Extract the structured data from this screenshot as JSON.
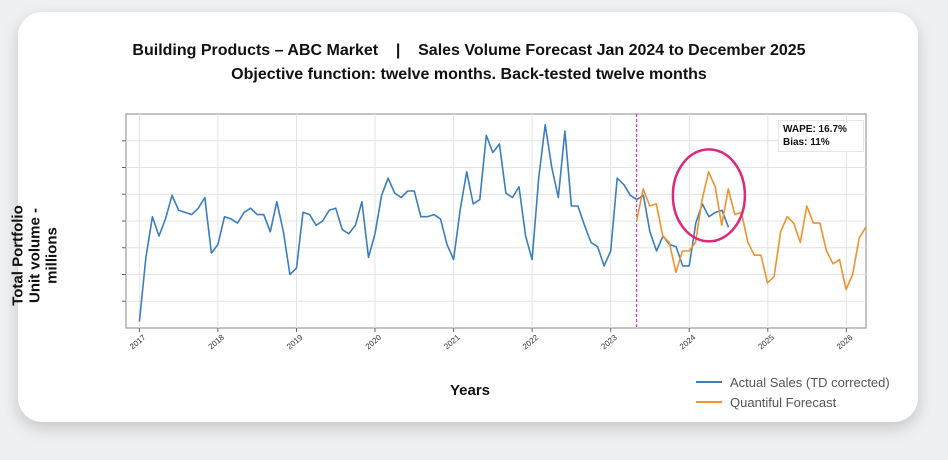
{
  "title_line1": "Building Products – ABC Market    |    Sales Volume Forecast Jan 2024 to December 2025",
  "title_line2": "Objective function: twelve months. Back-tested twelve months",
  "ylabel_line1": "Total Portfolio",
  "ylabel_line2": "Unit volume - millions",
  "xlabel": "Years",
  "metrics": {
    "wape": "WAPE: 16.7%",
    "bias": "Bias: 11%"
  },
  "legend": [
    {
      "label": "Actual Sales (TD corrected)",
      "color": "#3a7ebf"
    },
    {
      "label": "Quantiful Forecast",
      "color": "#f0922e"
    }
  ],
  "colors": {
    "actual": "#3a7ebf",
    "forecast": "#f0922e",
    "divider": "#d020d0",
    "highlight": "#e0287a"
  },
  "chart_data": {
    "type": "line",
    "title": "Building Products – ABC Market | Sales Volume Forecast Jan 2024 to December 2025",
    "xlabel": "Years",
    "ylabel": "Total Portfolio Unit volume - millions",
    "xlim": [
      2016.83,
      2026.25
    ],
    "ylim": [
      0,
      100
    ],
    "x_ticks": [
      "2017",
      "2018",
      "2019",
      "2020",
      "2021",
      "2022",
      "2023",
      "2024",
      "2025",
      "2026"
    ],
    "y_tick_labels_visible": false,
    "grid": true,
    "forecast_start": 2023.33,
    "annotation": "highlight ellipse around 2024 forecast peak",
    "series": [
      {
        "name": "Actual Sales (TD corrected)",
        "x_start": 2017.0,
        "x_step": 0.08333,
        "values": [
          3,
          33,
          52,
          43,
          51,
          62,
          55,
          54,
          53,
          56,
          61,
          35,
          39,
          52,
          51,
          49,
          54,
          56,
          53,
          53,
          45,
          59,
          45,
          25,
          28,
          54,
          53,
          48,
          50,
          55,
          56,
          46,
          44,
          48,
          59,
          33,
          44,
          62,
          70,
          63,
          61,
          64,
          64,
          52,
          52,
          53,
          51,
          39,
          32,
          55,
          73,
          58,
          60,
          90,
          82,
          86,
          63,
          61,
          66,
          43,
          32,
          70,
          95,
          75,
          61,
          92,
          57,
          57,
          48,
          40,
          38,
          29,
          36,
          70,
          67,
          62,
          60,
          62,
          45,
          36,
          43,
          39,
          38,
          29,
          29,
          49,
          58,
          52,
          54,
          55,
          47
        ]
      },
      {
        "name": "Quantiful Forecast",
        "x_start": 2023.33,
        "x_step": 0.08333,
        "values": [
          50,
          65,
          57,
          58,
          43,
          40,
          26,
          36,
          36,
          40,
          60,
          73,
          66,
          48,
          65,
          53,
          54,
          40,
          34,
          34,
          21,
          24,
          45,
          52,
          49,
          40,
          57,
          49,
          49,
          36,
          30,
          32,
          18,
          25,
          42,
          47
        ]
      }
    ]
  }
}
